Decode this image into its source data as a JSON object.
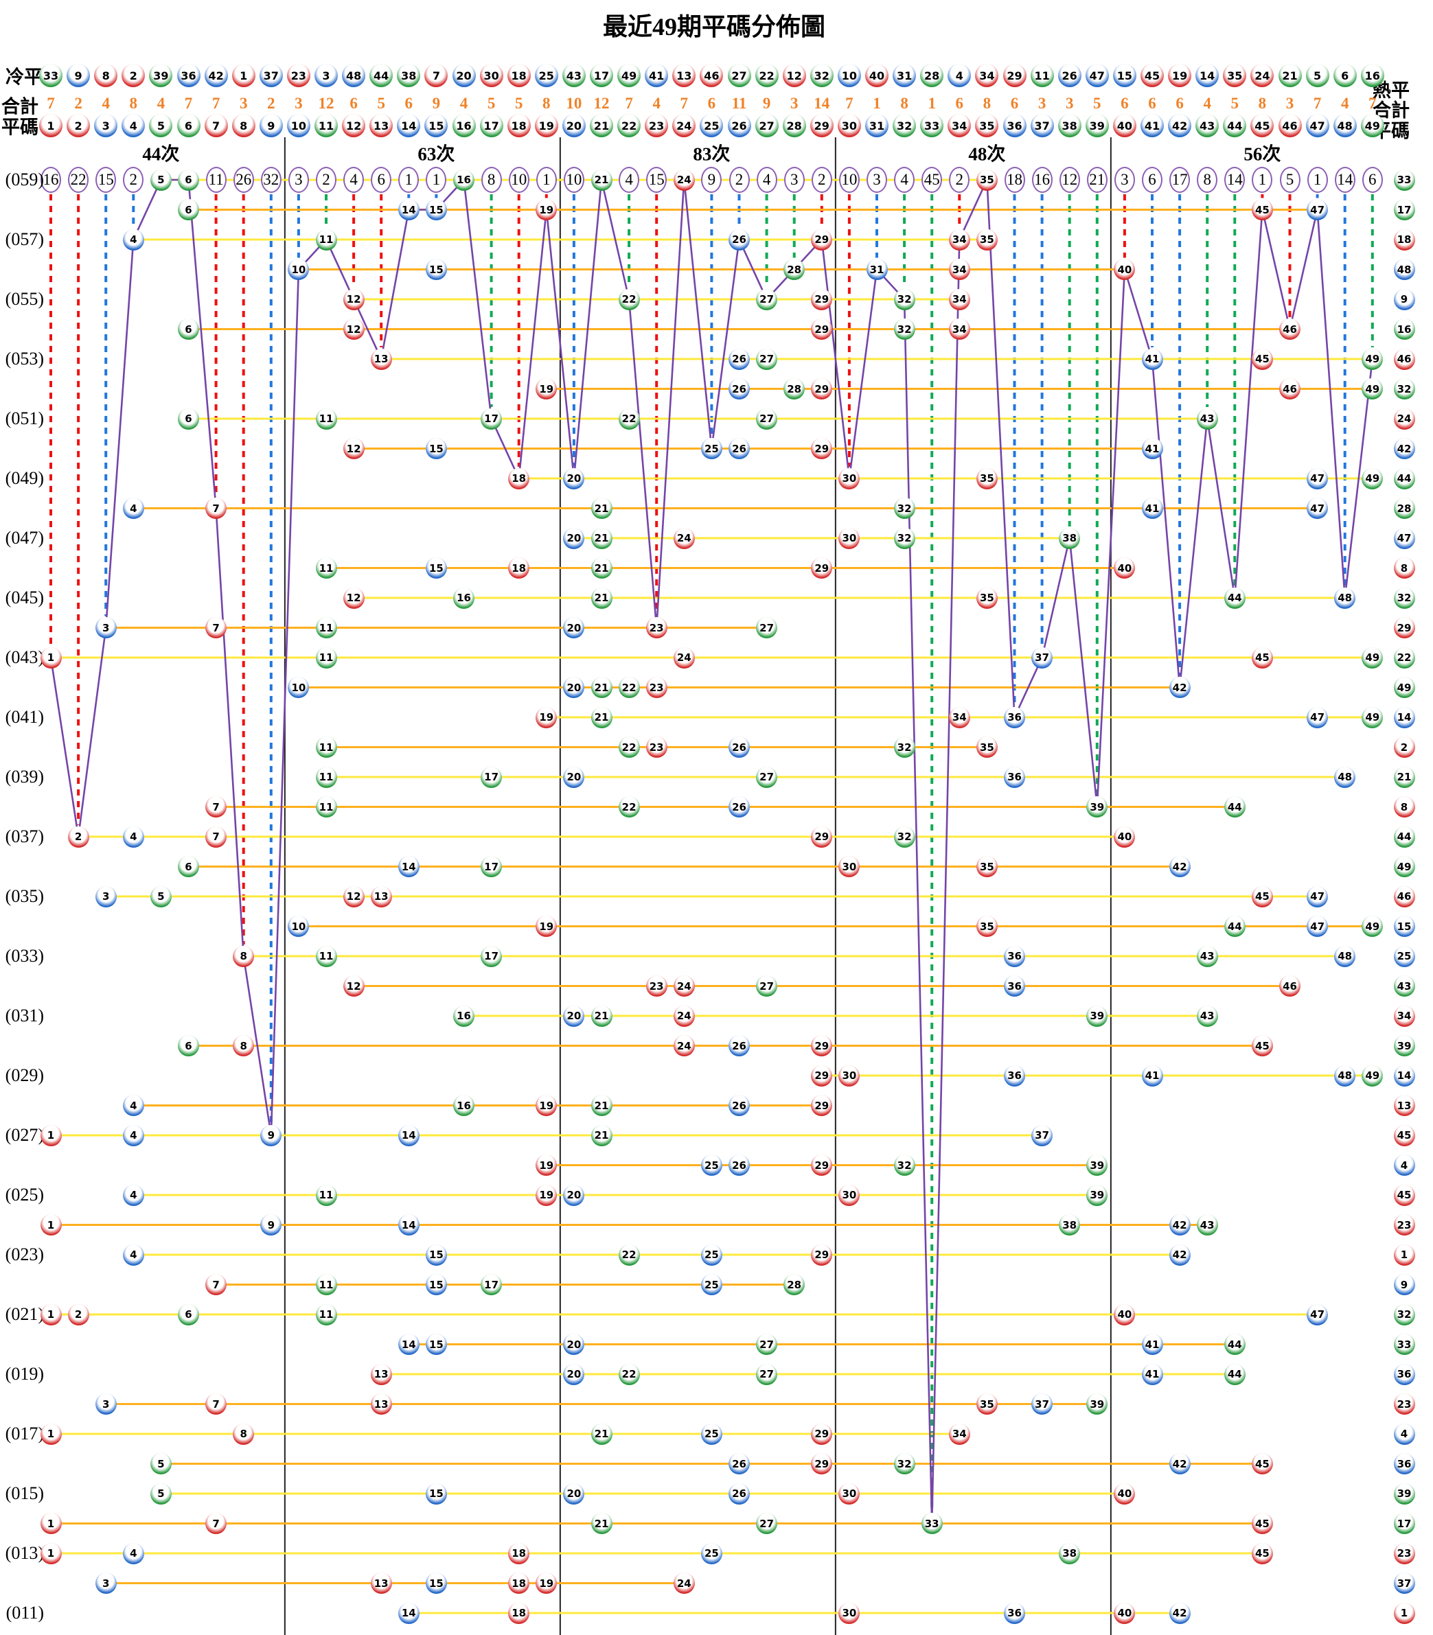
{
  "title": "最近49期平碼分佈圖",
  "header": {
    "cold_label": "冷平",
    "hot_label": "熱平",
    "total_label": "合計",
    "code_label": "平碼",
    "group_labels": [
      "44次",
      "63次",
      "83次",
      "48次",
      "56次"
    ],
    "cold_sequence": [
      33,
      9,
      8,
      2,
      39,
      36,
      42,
      1,
      37,
      23,
      3,
      48,
      44,
      38,
      7,
      20,
      30,
      18,
      25,
      43,
      17,
      49,
      41,
      13,
      46,
      27,
      22,
      12,
      32,
      10,
      40,
      31,
      28,
      4,
      34,
      29,
      11,
      26,
      47,
      15,
      45,
      19,
      14,
      35,
      24,
      21,
      5,
      6,
      16
    ],
    "totals": [
      7,
      2,
      4,
      8,
      4,
      7,
      7,
      3,
      2,
      3,
      12,
      6,
      5,
      6,
      9,
      4,
      5,
      5,
      8,
      10,
      12,
      7,
      4,
      7,
      6,
      11,
      9,
      3,
      14,
      7,
      1,
      8,
      1,
      6,
      8,
      6,
      3,
      3,
      5,
      6,
      6,
      6,
      4,
      5,
      8,
      3,
      7,
      4,
      7
    ],
    "codes": [
      1,
      2,
      3,
      4,
      5,
      6,
      7,
      8,
      9,
      10,
      11,
      12,
      13,
      14,
      15,
      16,
      17,
      18,
      19,
      20,
      21,
      22,
      23,
      24,
      25,
      26,
      27,
      28,
      29,
      30,
      31,
      32,
      33,
      34,
      35,
      36,
      37,
      38,
      39,
      40,
      41,
      42,
      43,
      44,
      45,
      46,
      47,
      48,
      49
    ]
  },
  "colors": {
    "red": "#d42a2a",
    "blue": "#2468c8",
    "green": "#28993e",
    "dash_red": "#ee1111",
    "dash_blue": "#2277dd",
    "dash_green": "#11aa55",
    "purple_line": "#7544a8",
    "circle_border": "#8c5fb4",
    "row_line_even": "#ffe93c",
    "row_line_odd": "#ffb01e",
    "divider": "#222222",
    "total_text": "#f08228"
  },
  "ball_color_groups": {
    "red": [
      1,
      2,
      7,
      8,
      12,
      13,
      18,
      19,
      23,
      24,
      29,
      30,
      34,
      35,
      40,
      45,
      46
    ],
    "blue": [
      3,
      4,
      9,
      10,
      14,
      15,
      20,
      25,
      26,
      31,
      36,
      37,
      41,
      42,
      47,
      48
    ],
    "green": [
      5,
      6,
      11,
      16,
      17,
      21,
      22,
      27,
      28,
      32,
      33,
      38,
      39,
      43,
      44,
      49
    ]
  },
  "chart_data": {
    "type": "scatter",
    "title": "最近49期平碼分佈圖",
    "xlabel": "平碼 1-49",
    "ylabel": "期數 (059)-(011)",
    "columns_range": [
      1,
      49
    ],
    "miss_counts": [
      16,
      22,
      15,
      2,
      0,
      0,
      11,
      26,
      32,
      3,
      2,
      4,
      6,
      1,
      1,
      0,
      8,
      10,
      1,
      10,
      0,
      4,
      15,
      0,
      9,
      2,
      4,
      3,
      2,
      10,
      3,
      4,
      45,
      2,
      0,
      18,
      16,
      12,
      21,
      3,
      6,
      17,
      8,
      14,
      1,
      5,
      1,
      14,
      6
    ],
    "periods": [
      {
        "label": "(059)",
        "numbers": [
          5,
          6,
          16,
          21,
          24,
          35
        ],
        "special": 33
      },
      {
        "label": "",
        "numbers": [
          6,
          14,
          15,
          19,
          45,
          47
        ],
        "special": 17
      },
      {
        "label": "(057)",
        "numbers": [
          4,
          11,
          26,
          29,
          34,
          35
        ],
        "special": 18
      },
      {
        "label": "",
        "numbers": [
          10,
          15,
          28,
          31,
          34,
          40
        ],
        "special": 48
      },
      {
        "label": "(055)",
        "numbers": [
          12,
          22,
          27,
          29,
          32,
          34
        ],
        "special": 9
      },
      {
        "label": "",
        "numbers": [
          6,
          12,
          29,
          32,
          34,
          46
        ],
        "special": 16
      },
      {
        "label": "(053)",
        "numbers": [
          13,
          26,
          27,
          41,
          45,
          49
        ],
        "special": 46
      },
      {
        "label": "",
        "numbers": [
          19,
          26,
          28,
          29,
          46,
          49
        ],
        "special": 32
      },
      {
        "label": "(051)",
        "numbers": [
          6,
          11,
          17,
          22,
          27,
          43
        ],
        "special": 24
      },
      {
        "label": "",
        "numbers": [
          12,
          15,
          25,
          26,
          29,
          41
        ],
        "special": 42
      },
      {
        "label": "(049)",
        "numbers": [
          18,
          20,
          30,
          35,
          47,
          49
        ],
        "special": 44
      },
      {
        "label": "",
        "numbers": [
          4,
          7,
          21,
          32,
          41,
          47
        ],
        "special": 28
      },
      {
        "label": "(047)",
        "numbers": [
          20,
          21,
          24,
          30,
          32,
          38
        ],
        "special": 47
      },
      {
        "label": "",
        "numbers": [
          11,
          15,
          18,
          21,
          29,
          40
        ],
        "special": 8
      },
      {
        "label": "(045)",
        "numbers": [
          12,
          16,
          21,
          35,
          44,
          48
        ],
        "special": 32
      },
      {
        "label": "",
        "numbers": [
          3,
          7,
          11,
          20,
          23,
          27
        ],
        "special": 29
      },
      {
        "label": "(043)",
        "numbers": [
          1,
          11,
          24,
          37,
          45,
          49
        ],
        "special": 22
      },
      {
        "label": "",
        "numbers": [
          10,
          20,
          21,
          22,
          23,
          42
        ],
        "special": 49
      },
      {
        "label": "(041)",
        "numbers": [
          19,
          21,
          34,
          36,
          47,
          49
        ],
        "special": 14
      },
      {
        "label": "",
        "numbers": [
          11,
          22,
          23,
          26,
          32,
          35
        ],
        "special": 2
      },
      {
        "label": "(039)",
        "numbers": [
          11,
          17,
          20,
          27,
          36,
          48
        ],
        "special": 21
      },
      {
        "label": "",
        "numbers": [
          7,
          11,
          22,
          26,
          39,
          44
        ],
        "special": 8
      },
      {
        "label": "(037)",
        "numbers": [
          2,
          4,
          7,
          29,
          32,
          40
        ],
        "special": 44
      },
      {
        "label": "",
        "numbers": [
          6,
          14,
          17,
          30,
          35,
          42
        ],
        "special": 49
      },
      {
        "label": "(035)",
        "numbers": [
          3,
          5,
          12,
          13,
          45,
          47
        ],
        "special": 46
      },
      {
        "label": "",
        "numbers": [
          10,
          19,
          35,
          44,
          47,
          49
        ],
        "special": 15
      },
      {
        "label": "(033)",
        "numbers": [
          8,
          11,
          17,
          36,
          43,
          48
        ],
        "special": 25
      },
      {
        "label": "",
        "numbers": [
          12,
          23,
          24,
          27,
          36,
          46
        ],
        "special": 43
      },
      {
        "label": "(031)",
        "numbers": [
          16,
          20,
          21,
          24,
          39,
          43
        ],
        "special": 34
      },
      {
        "label": "",
        "numbers": [
          6,
          8,
          24,
          26,
          29,
          45
        ],
        "special": 39
      },
      {
        "label": "(029)",
        "numbers": [
          29,
          30,
          36,
          41,
          48,
          49
        ],
        "special": 14
      },
      {
        "label": "",
        "numbers": [
          4,
          16,
          19,
          21,
          26,
          29
        ],
        "special": 13
      },
      {
        "label": "(027)",
        "numbers": [
          1,
          4,
          9,
          14,
          21,
          37
        ],
        "special": 45
      },
      {
        "label": "",
        "numbers": [
          19,
          25,
          26,
          29,
          32,
          39
        ],
        "special": 4
      },
      {
        "label": "(025)",
        "numbers": [
          4,
          11,
          19,
          20,
          30,
          39
        ],
        "special": 45
      },
      {
        "label": "",
        "numbers": [
          1,
          9,
          14,
          38,
          42,
          43
        ],
        "special": 23
      },
      {
        "label": "(023)",
        "numbers": [
          4,
          15,
          22,
          25,
          29,
          42
        ],
        "special": 1
      },
      {
        "label": "",
        "numbers": [
          7,
          11,
          15,
          17,
          25,
          28
        ],
        "special": 9
      },
      {
        "label": "(021)",
        "numbers": [
          1,
          2,
          6,
          11,
          40,
          47
        ],
        "special": 32
      },
      {
        "label": "",
        "numbers": [
          14,
          15,
          20,
          27,
          41,
          44
        ],
        "special": 33
      },
      {
        "label": "(019)",
        "numbers": [
          13,
          20,
          22,
          27,
          41,
          44
        ],
        "special": 36
      },
      {
        "label": "",
        "numbers": [
          3,
          7,
          13,
          35,
          37,
          39
        ],
        "special": 23
      },
      {
        "label": "(017)",
        "numbers": [
          1,
          8,
          21,
          25,
          29,
          34
        ],
        "special": 4
      },
      {
        "label": "",
        "numbers": [
          5,
          26,
          29,
          32,
          42,
          45
        ],
        "special": 36
      },
      {
        "label": "(015)",
        "numbers": [
          5,
          15,
          20,
          26,
          30,
          40
        ],
        "special": 39
      },
      {
        "label": "",
        "numbers": [
          1,
          7,
          21,
          27,
          33,
          45
        ],
        "special": 17
      },
      {
        "label": "(013)",
        "numbers": [
          1,
          4,
          18,
          25,
          38,
          45
        ],
        "special": 23
      },
      {
        "label": "",
        "numbers": [
          3,
          13,
          15,
          18,
          19,
          24
        ],
        "special": 37
      },
      {
        "label": "(011)",
        "numbers": [
          14,
          18,
          30,
          36,
          40,
          42
        ],
        "special": 1
      }
    ]
  }
}
